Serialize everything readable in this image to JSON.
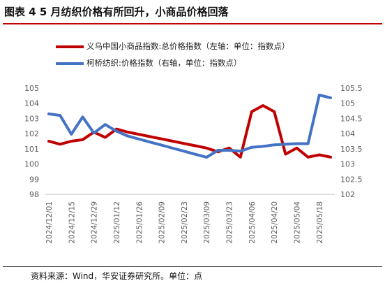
{
  "title": "图表 4  5 月纺织价格有所回升，小商品价格回落",
  "source": "资料来源：Wind，华安证券研究所。单位：点",
  "chart_data": {
    "type": "line",
    "x": [
      "2024/12/01",
      "2024/12/08",
      "2024/12/15",
      "2024/12/22",
      "2024/12/29",
      "2025/01/05",
      "2025/01/12",
      "2025/01/19",
      "2025/01/26",
      "2025/02/02",
      "2025/02/09",
      "2025/02/16",
      "2025/02/23",
      "2025/03/02",
      "2025/03/09",
      "2025/03/16",
      "2025/03/23",
      "2025/03/30",
      "2025/04/06",
      "2025/04/13",
      "2025/04/20",
      "2025/04/27",
      "2025/05/04",
      "2025/05/11",
      "2025/05/18",
      "2025/05/25"
    ],
    "x_ticks": [
      "2024/12/01",
      "2024/12/15",
      "2024/12/29",
      "2025/01/12",
      "2025/01/26",
      "2025/02/09",
      "2025/02/23",
      "2025/03/09",
      "2025/03/23",
      "2025/04/06",
      "2025/04/20",
      "2025/05/04",
      "2025/05/18"
    ],
    "series": [
      {
        "name": "义乌中国小商品指数:总价格指数（左轴：单位：指数点）",
        "axis": "left",
        "color": "#c00000",
        "values": [
          101.5,
          101.3,
          101.5,
          101.6,
          102.1,
          101.75,
          102.3,
          102.1,
          101.95,
          101.8,
          101.65,
          101.5,
          101.35,
          101.2,
          101.05,
          100.8,
          101.05,
          100.45,
          103.45,
          103.85,
          103.45,
          100.65,
          101.05,
          100.45,
          100.6,
          100.45
        ]
      },
      {
        "name": "柯桥纺织:价格指数（右轴，单位：指数点）",
        "axis": "right",
        "color": "#4472c4",
        "values": [
          104.65,
          104.6,
          103.98,
          104.55,
          104.02,
          104.3,
          104.08,
          103.92,
          103.82,
          103.72,
          103.62,
          103.52,
          103.42,
          103.32,
          103.22,
          103.45,
          103.45,
          103.42,
          103.55,
          103.58,
          103.63,
          103.65,
          103.67,
          103.67,
          105.27,
          105.18
        ]
      }
    ],
    "ylim_left": [
      98,
      105
    ],
    "yticks_left": [
      "98",
      "99",
      "100",
      "101",
      "102",
      "103",
      "104",
      "105"
    ],
    "ylim_right": [
      102,
      105.5
    ],
    "yticks_right": [
      "102",
      "102.5",
      "103",
      "103.5",
      "104",
      "104.5",
      "105",
      "105.5"
    ],
    "grid": false,
    "legend": "top-left"
  }
}
